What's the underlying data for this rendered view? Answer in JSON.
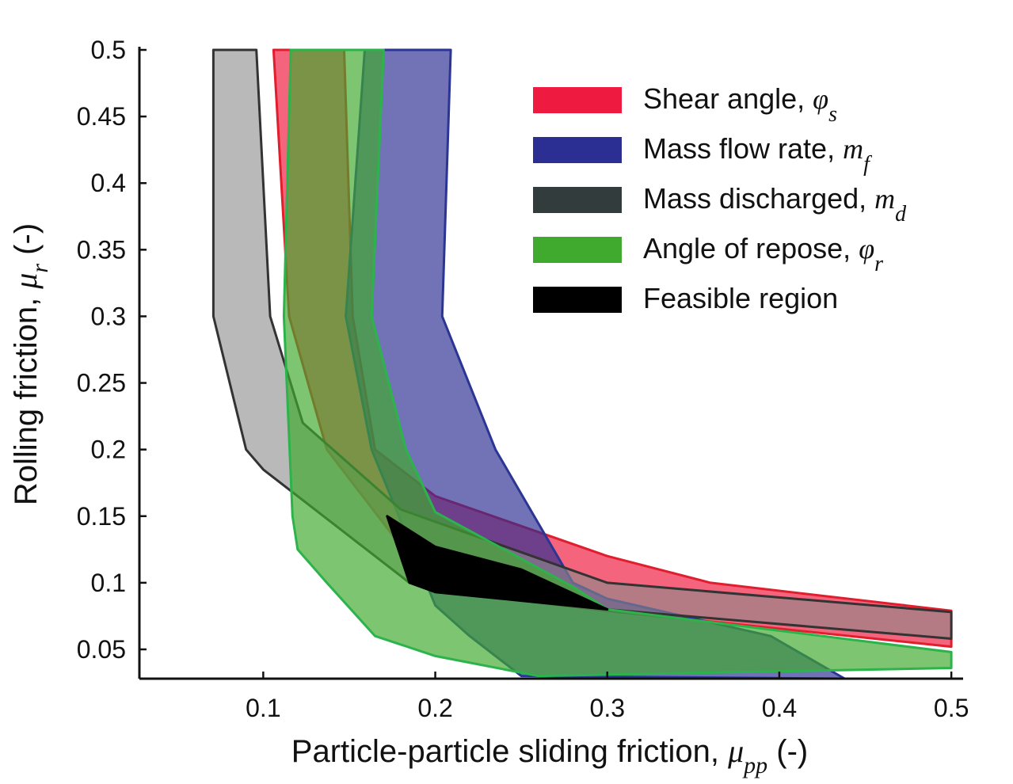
{
  "chart_data": {
    "type": "area",
    "xlabel": {
      "text": "Particle-particle sliding friction, ",
      "symbol": "μ",
      "sub": "pp",
      "unit": " (-)"
    },
    "ylabel": {
      "text": "Rolling friction, ",
      "symbol": "μ",
      "sub": "r",
      "unit": " (-)"
    },
    "xlim": [
      0.028,
      0.505
    ],
    "ylim": [
      0.028,
      0.5
    ],
    "xticks": [
      0.1,
      0.2,
      0.3,
      0.4,
      0.5
    ],
    "xtick_labels": [
      "0.1",
      "0.2",
      "0.3",
      "0.4",
      "0.5"
    ],
    "yticks": [
      0.05,
      0.1,
      0.15,
      0.2,
      0.25,
      0.3,
      0.35,
      0.4,
      0.45,
      0.5
    ],
    "ytick_labels": [
      "0.05",
      "0.1",
      "0.15",
      "0.2",
      "0.25",
      "0.3",
      "0.35",
      "0.4",
      "0.45",
      "0.5"
    ],
    "legend_position": "top-right",
    "series": [
      {
        "name": "Shear angle, ",
        "symbol": "φ",
        "sub": "s",
        "fill": "#ef1a3f",
        "opacity": 0.68,
        "stroke": "#e01e2e",
        "polygon": [
          [
            0.106,
            0.5
          ],
          [
            0.115,
            0.3
          ],
          [
            0.137,
            0.2
          ],
          [
            0.2,
            0.094
          ],
          [
            0.3,
            0.079
          ],
          [
            0.5,
            0.052
          ],
          [
            0.5,
            0.079
          ],
          [
            0.36,
            0.1
          ],
          [
            0.3,
            0.12
          ],
          [
            0.2,
            0.165
          ],
          [
            0.165,
            0.2
          ],
          [
            0.152,
            0.3
          ],
          [
            0.147,
            0.5
          ]
        ]
      },
      {
        "name": "Mass flow rate, ",
        "symbol": "m",
        "sub": "f",
        "fill": "#2b2e92",
        "opacity": 0.67,
        "stroke": "#2b3594",
        "polygon": [
          [
            0.159,
            0.5
          ],
          [
            0.148,
            0.3
          ],
          [
            0.163,
            0.2
          ],
          [
            0.2,
            0.083
          ],
          [
            0.22,
            0.06
          ],
          [
            0.25,
            0.03
          ],
          [
            0.438,
            0.028
          ],
          [
            0.395,
            0.06
          ],
          [
            0.3,
            0.088
          ],
          [
            0.28,
            0.1
          ],
          [
            0.235,
            0.2
          ],
          [
            0.204,
            0.3
          ],
          [
            0.209,
            0.5
          ]
        ]
      },
      {
        "name": "Mass discharged, ",
        "symbol": "m",
        "sub": "d",
        "fill": "#8b8b8b",
        "opacity": 0.6,
        "stroke": "#333333",
        "polygon": [
          [
            0.071,
            0.5
          ],
          [
            0.071,
            0.3
          ],
          [
            0.09,
            0.2
          ],
          [
            0.1,
            0.185
          ],
          [
            0.185,
            0.1
          ],
          [
            0.3,
            0.08
          ],
          [
            0.5,
            0.058
          ],
          [
            0.5,
            0.078
          ],
          [
            0.3,
            0.1
          ],
          [
            0.18,
            0.155
          ],
          [
            0.123,
            0.22
          ],
          [
            0.104,
            0.3
          ],
          [
            0.096,
            0.5
          ]
        ]
      },
      {
        "name": "Angle of repose, ",
        "symbol": "φ",
        "sub": "r",
        "fill": "#3faa2e",
        "opacity": 0.68,
        "stroke": "#2db34b",
        "polygon": [
          [
            0.116,
            0.5
          ],
          [
            0.112,
            0.3
          ],
          [
            0.117,
            0.15
          ],
          [
            0.12,
            0.125
          ],
          [
            0.137,
            0.1
          ],
          [
            0.165,
            0.06
          ],
          [
            0.2,
            0.045
          ],
          [
            0.26,
            0.03
          ],
          [
            0.5,
            0.036
          ],
          [
            0.5,
            0.048
          ],
          [
            0.4,
            0.064
          ],
          [
            0.3,
            0.08
          ],
          [
            0.28,
            0.097
          ],
          [
            0.2,
            0.153
          ],
          [
            0.183,
            0.2
          ],
          [
            0.163,
            0.3
          ],
          [
            0.17,
            0.5
          ]
        ]
      },
      {
        "name": "Feasible region",
        "symbol": "",
        "sub": "",
        "fill": "#000000",
        "opacity": 1,
        "stroke": "#000000",
        "polygon": [
          [
            0.172,
            0.15
          ],
          [
            0.185,
            0.1
          ],
          [
            0.2,
            0.093
          ],
          [
            0.3,
            0.08
          ],
          [
            0.25,
            0.11
          ],
          [
            0.2,
            0.127
          ]
        ]
      }
    ]
  }
}
